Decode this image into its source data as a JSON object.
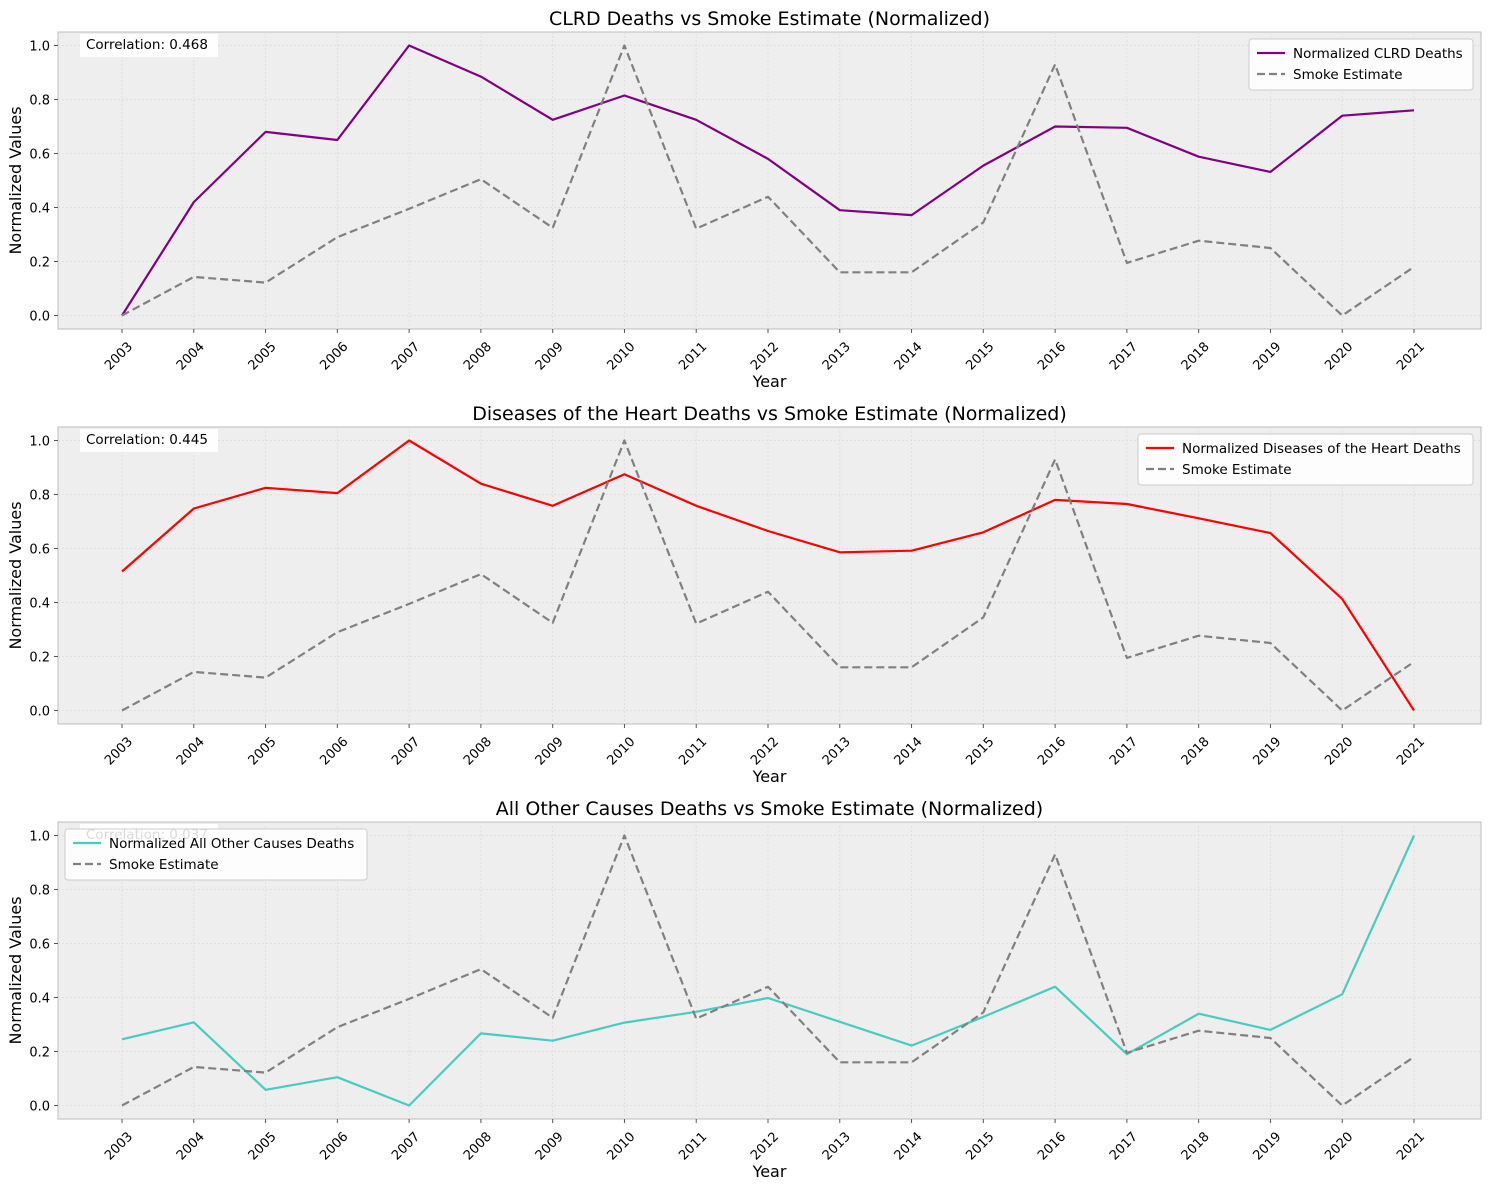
{
  "chart_data": [
    {
      "type": "line",
      "title": "CLRD Deaths vs Smoke Estimate (Normalized)",
      "xlabel": "Year",
      "ylabel": "Normalized Values",
      "ylim": [
        -0.05,
        1.05
      ],
      "yticks": [
        "0.0",
        "0.2",
        "0.4",
        "0.6",
        "0.8",
        "1.0"
      ],
      "x": [
        "2003",
        "2004",
        "2005",
        "2006",
        "2007",
        "2008",
        "2009",
        "2010",
        "2011",
        "2012",
        "2013",
        "2014",
        "2015",
        "2016",
        "2017",
        "2018",
        "2019",
        "2020",
        "2021"
      ],
      "grid": true,
      "legend_position": "top-right",
      "annotation": "Correlation: 0.468",
      "series": [
        {
          "name": "Normalized CLRD Deaths",
          "color": "#800080",
          "style": "solid",
          "values": [
            0.0,
            0.42,
            0.68,
            0.65,
            1.0,
            0.885,
            0.725,
            0.815,
            0.725,
            0.58,
            0.39,
            0.372,
            0.555,
            0.7,
            0.695,
            0.588,
            0.532,
            0.74,
            0.76
          ]
        },
        {
          "name": "Smoke Estimate",
          "color": "#808080",
          "style": "dashed",
          "values": [
            0.0,
            0.143,
            0.122,
            0.29,
            0.395,
            0.505,
            0.325,
            1.0,
            0.322,
            0.44,
            0.16,
            0.16,
            0.345,
            0.93,
            0.195,
            0.277,
            0.25,
            0.0,
            0.18
          ]
        }
      ]
    },
    {
      "type": "line",
      "title": "Diseases of the Heart Deaths vs Smoke Estimate (Normalized)",
      "xlabel": "Year",
      "ylabel": "Normalized Values",
      "ylim": [
        -0.05,
        1.05
      ],
      "yticks": [
        "0.0",
        "0.2",
        "0.4",
        "0.6",
        "0.8",
        "1.0"
      ],
      "x": [
        "2003",
        "2004",
        "2005",
        "2006",
        "2007",
        "2008",
        "2009",
        "2010",
        "2011",
        "2012",
        "2013",
        "2014",
        "2015",
        "2016",
        "2017",
        "2018",
        "2019",
        "2020",
        "2021"
      ],
      "grid": true,
      "legend_position": "top-right",
      "annotation": "Correlation: 0.445",
      "series": [
        {
          "name": "Normalized Diseases of the Heart Deaths",
          "color": "#ff0000",
          "style": "solid",
          "values": [
            0.515,
            0.748,
            0.825,
            0.805,
            1.0,
            0.84,
            0.758,
            0.875,
            0.758,
            0.665,
            0.586,
            0.592,
            0.66,
            0.78,
            0.765,
            0.712,
            0.657,
            0.413,
            0.0
          ]
        },
        {
          "name": "Smoke Estimate",
          "color": "#808080",
          "style": "dashed",
          "values": [
            0.0,
            0.143,
            0.122,
            0.29,
            0.395,
            0.505,
            0.325,
            1.0,
            0.322,
            0.44,
            0.16,
            0.16,
            0.345,
            0.93,
            0.195,
            0.277,
            0.25,
            0.0,
            0.18
          ]
        }
      ]
    },
    {
      "type": "line",
      "title": "All Other Causes Deaths vs Smoke Estimate (Normalized)",
      "xlabel": "Year",
      "ylabel": "Normalized Values",
      "ylim": [
        -0.05,
        1.05
      ],
      "yticks": [
        "0.0",
        "0.2",
        "0.4",
        "0.6",
        "0.8",
        "1.0"
      ],
      "x": [
        "2003",
        "2004",
        "2005",
        "2006",
        "2007",
        "2008",
        "2009",
        "2010",
        "2011",
        "2012",
        "2013",
        "2014",
        "2015",
        "2016",
        "2017",
        "2018",
        "2019",
        "2020",
        "2021"
      ],
      "grid": true,
      "legend_position": "top-left",
      "annotation": "Correlation: 0.037",
      "series": [
        {
          "name": "Normalized All Other Causes Deaths",
          "color": "#48cbc0",
          "style": "solid",
          "values": [
            0.245,
            0.308,
            0.058,
            0.105,
            0.0,
            0.267,
            0.24,
            0.307,
            0.347,
            0.398,
            0.31,
            0.222,
            0.328,
            0.44,
            0.19,
            0.34,
            0.28,
            0.412,
            1.0
          ]
        },
        {
          "name": "Smoke Estimate",
          "color": "#808080",
          "style": "dashed",
          "values": [
            0.0,
            0.143,
            0.122,
            0.29,
            0.395,
            0.505,
            0.325,
            1.0,
            0.322,
            0.44,
            0.16,
            0.16,
            0.345,
            0.93,
            0.195,
            0.277,
            0.25,
            0.0,
            0.18
          ]
        }
      ]
    }
  ]
}
